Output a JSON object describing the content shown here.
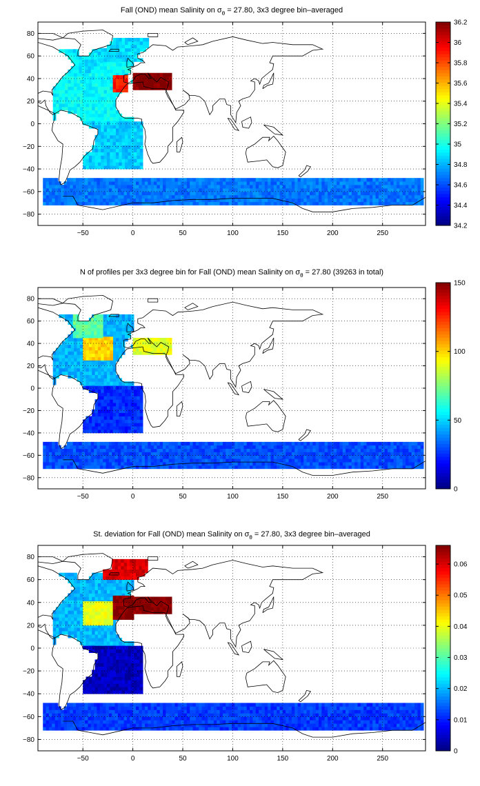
{
  "chart_data": [
    {
      "type": "heatmap",
      "title": "Fall (OND) mean Salinity on σ",
      "title_sub": "θ",
      "title_rest": " = 27.80, 3x3 degree bin–averaged",
      "xlabel": "",
      "ylabel": "",
      "xlim": [
        -95,
        293
      ],
      "ylim": [
        -90,
        90
      ],
      "xticks": [
        "-50",
        "0",
        "50",
        "100",
        "150",
        "200",
        "250"
      ],
      "yticks": [
        "80",
        "60",
        "40",
        "20",
        "0",
        "-20",
        "-40",
        "-60",
        "-80"
      ],
      "colorbar": {
        "min": 34.2,
        "max": 36.2,
        "ticks": [
          "36.2",
          "36",
          "35.8",
          "35.6",
          "35.4",
          "35.2",
          "35",
          "34.8",
          "34.6",
          "34.4",
          "34.2"
        ]
      },
      "grid": true,
      "regions": [
        {
          "name": "north-atlantic",
          "lon": [
            -80,
            0
          ],
          "lat": [
            0,
            65
          ],
          "value": 34.95
        },
        {
          "name": "labrador",
          "lon": [
            -60,
            -30
          ],
          "lat": [
            45,
            65
          ],
          "value": 34.9
        },
        {
          "name": "nordic",
          "lon": [
            -35,
            15
          ],
          "lat": [
            55,
            75
          ],
          "value": 34.88
        },
        {
          "name": "south-atlantic",
          "lon": [
            -50,
            10
          ],
          "lat": [
            -40,
            0
          ],
          "value": 34.85
        },
        {
          "name": "gibraltar-outflow",
          "lon": [
            -20,
            -5
          ],
          "lat": [
            28,
            42
          ],
          "value": 35.9
        },
        {
          "name": "mediterranean",
          "lon": [
            0,
            38
          ],
          "lat": [
            30,
            45
          ],
          "value": 36.2
        },
        {
          "name": "southern-ocean",
          "lon": [
            -90,
            290
          ],
          "lat": [
            -72,
            -48
          ],
          "value": 34.68
        }
      ]
    },
    {
      "type": "heatmap",
      "title": "N of profiles per 3x3 degree bin for Fall (OND) mean Salinity on σ",
      "title_sub": "θ",
      "title_rest": " = 27.80 (39263 in total)",
      "xlabel": "",
      "ylabel": "",
      "xlim": [
        -95,
        293
      ],
      "ylim": [
        -90,
        90
      ],
      "xticks": [
        "-50",
        "0",
        "50",
        "100",
        "150",
        "200",
        "250"
      ],
      "yticks": [
        "80",
        "60",
        "40",
        "20",
        "0",
        "-20",
        "-40",
        "-60",
        "-80"
      ],
      "colorbar": {
        "min": 0,
        "max": 150,
        "ticks": [
          "150",
          "100",
          "50",
          "0"
        ]
      },
      "grid": true,
      "regions": [
        {
          "name": "north-atlantic",
          "lon": [
            -80,
            0
          ],
          "lat": [
            0,
            65
          ],
          "value": 45
        },
        {
          "name": "gulf-stream",
          "lon": [
            -50,
            -20
          ],
          "lat": [
            25,
            45
          ],
          "value": 100
        },
        {
          "name": "labrador",
          "lon": [
            -60,
            -30
          ],
          "lat": [
            45,
            65
          ],
          "value": 70
        },
        {
          "name": "mediterranean",
          "lon": [
            0,
            38
          ],
          "lat": [
            30,
            45
          ],
          "value": 90
        },
        {
          "name": "south-atlantic",
          "lon": [
            -50,
            10
          ],
          "lat": [
            -40,
            0
          ],
          "value": 25
        },
        {
          "name": "southern-ocean",
          "lon": [
            -90,
            290
          ],
          "lat": [
            -72,
            -48
          ],
          "value": 30
        }
      ]
    },
    {
      "type": "heatmap",
      "title": "St. deviation for Fall (OND) mean Salinity on σ",
      "title_sub": "θ",
      "title_rest": " = 27.80, 3x3 degree bin–averaged",
      "xlabel": "",
      "ylabel": "",
      "xlim": [
        -95,
        293
      ],
      "ylim": [
        -90,
        90
      ],
      "xticks": [
        "-50",
        "0",
        "50",
        "100",
        "150",
        "200",
        "250"
      ],
      "yticks": [
        "80",
        "60",
        "40",
        "20",
        "0",
        "-20",
        "-40",
        "-60",
        "-80"
      ],
      "colorbar": {
        "min": 0,
        "max": 0.066,
        "ticks": [
          "0.06",
          "0.05",
          "0.04",
          "0.03",
          "0.02",
          "0.01",
          "0"
        ]
      },
      "grid": true,
      "regions": [
        {
          "name": "north-atlantic",
          "lon": [
            -80,
            0
          ],
          "lat": [
            0,
            65
          ],
          "value": 0.02
        },
        {
          "name": "gulf-stream",
          "lon": [
            -50,
            -20
          ],
          "lat": [
            20,
            40
          ],
          "value": 0.04
        },
        {
          "name": "gibraltar",
          "lon": [
            -20,
            0
          ],
          "lat": [
            25,
            45
          ],
          "value": 0.066
        },
        {
          "name": "mediterranean",
          "lon": [
            0,
            38
          ],
          "lat": [
            30,
            45
          ],
          "value": 0.066
        },
        {
          "name": "nordic",
          "lon": [
            -30,
            15
          ],
          "lat": [
            60,
            78
          ],
          "value": 0.06
        },
        {
          "name": "south-atlantic",
          "lon": [
            -50,
            10
          ],
          "lat": [
            -40,
            0
          ],
          "value": 0.004
        },
        {
          "name": "southern-ocean",
          "lon": [
            -90,
            290
          ],
          "lat": [
            -72,
            -48
          ],
          "value": 0.012
        }
      ]
    }
  ]
}
